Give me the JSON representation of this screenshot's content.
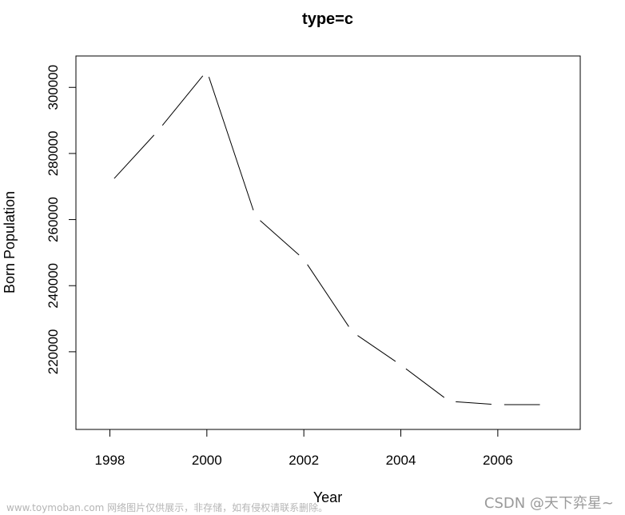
{
  "chart_data": {
    "type": "line",
    "plot_style": "c",
    "title": "type=c",
    "xlabel": "Year",
    "ylabel": "Born Population",
    "x": [
      1998,
      1999,
      2000,
      2001,
      2002,
      2003,
      2004,
      2005,
      2006,
      2007
    ],
    "y": [
      271000,
      287000,
      305000,
      261000,
      248000,
      226000,
      216000,
      205000,
      204000,
      204000
    ],
    "xlim": [
      1997.3,
      2007.7
    ],
    "ylim": [
      196500,
      309500
    ],
    "x_ticks": [
      "1998",
      "2000",
      "2002",
      "2004",
      "2006"
    ],
    "y_ticks": [
      "220000",
      "240000",
      "260000",
      "280000",
      "300000"
    ],
    "grid": false,
    "colors": {
      "line": "#000000",
      "axis": "#000000",
      "background": "#ffffff"
    }
  },
  "watermarks": {
    "left": "www.toymoban.com 网络图片仅供展示，非存储，如有侵权请联系删除。",
    "right": "CSDN @天下弈星~"
  }
}
